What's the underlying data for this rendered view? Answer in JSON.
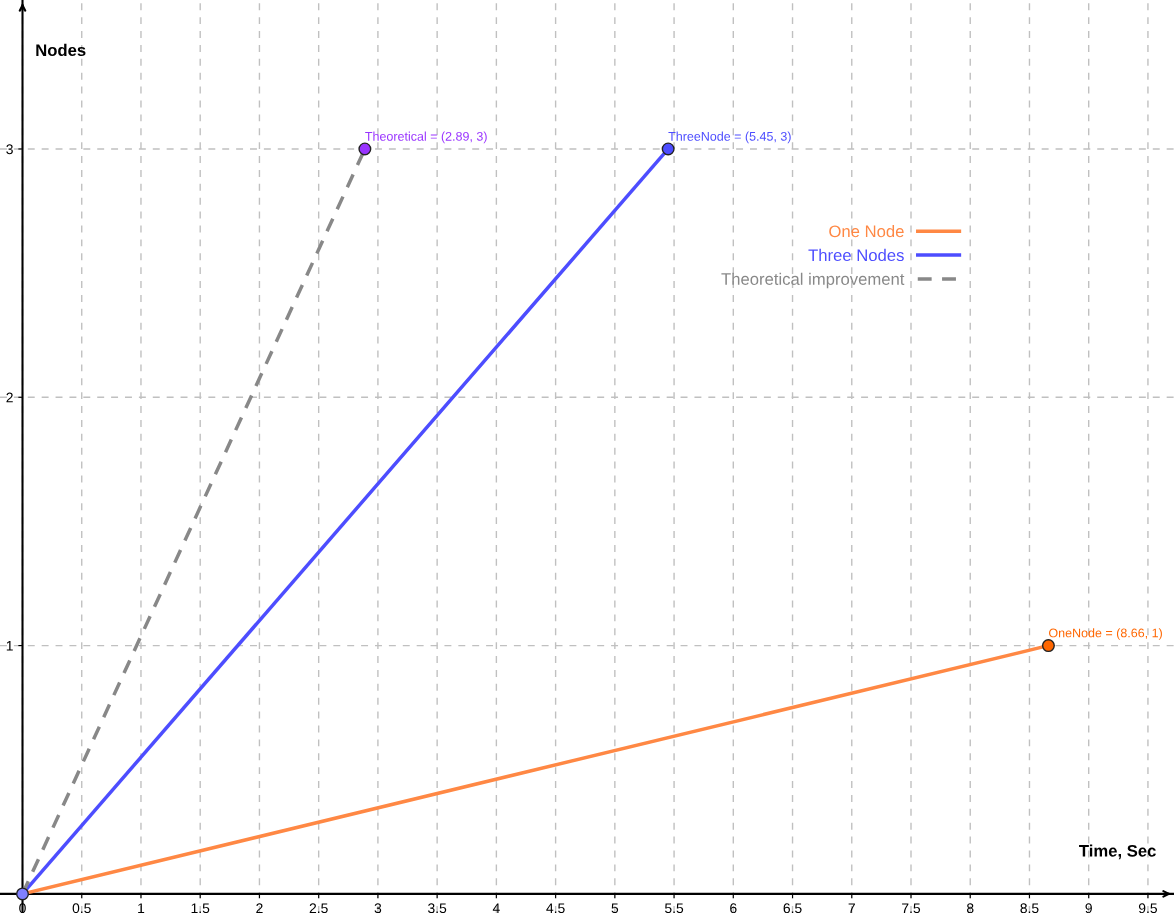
{
  "chart_data": {
    "type": "line",
    "xlabel": "Time, Sec",
    "ylabel": "Nodes",
    "xlim": [
      -0.19,
      9.72
    ],
    "ylim": [
      -0.077,
      3.6
    ],
    "xticks": [
      0,
      0.5,
      1,
      1.5,
      2,
      2.5,
      3,
      3.5,
      4,
      4.5,
      5,
      5.5,
      6,
      6.5,
      7,
      7.5,
      8,
      8.5,
      9,
      9.5
    ],
    "yticks": [
      1,
      2,
      3
    ],
    "grid": true,
    "legend": "top right",
    "series": [
      {
        "name": "One Node",
        "color": "#ff8844",
        "x": [
          0,
          8.66
        ],
        "values": [
          0,
          1
        ],
        "line_style": "solid"
      },
      {
        "name": "Three Nodes",
        "color": "#4d4dff",
        "x": [
          0,
          5.45
        ],
        "values": [
          0,
          3
        ],
        "line_style": "solid"
      },
      {
        "name": "Theoretical improvement",
        "color": "#888888",
        "x": [
          0,
          2.89
        ],
        "values": [
          0,
          3
        ],
        "line_style": "dashed"
      },
      {
        "type": "scatter",
        "x": [
          0,
          2.89,
          5.45,
          8.66
        ],
        "values": [
          0,
          3,
          3,
          1
        ],
        "colors": [
          "#8080ff",
          "#9933ff",
          "#4d4dff",
          "#ff6600"
        ],
        "marker": "circle"
      }
    ],
    "annotations": [
      {
        "text": "Theoretical = (2.89, 3)",
        "x": 2.89,
        "y": 3
      },
      {
        "text": "ThreeNode = (5.45, 3)",
        "x": 5.45,
        "y": 3
      },
      {
        "text": "OneNode = (8.66, 1)",
        "x": 8.66,
        "y": 1
      }
    ]
  }
}
